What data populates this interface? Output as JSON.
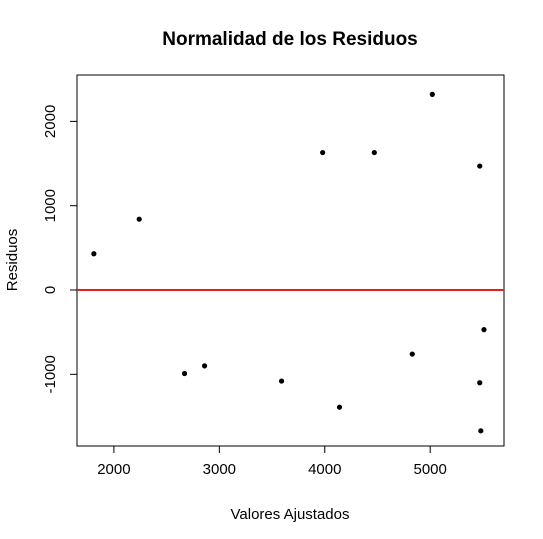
{
  "chart_data": {
    "type": "scatter",
    "title": "Normalidad de los Residuos",
    "xlabel": "Valores Ajustados",
    "ylabel": "Residuos",
    "xlim": [
      1650,
      5700
    ],
    "ylim": [
      -1850,
      2550
    ],
    "x_ticks": [
      2000,
      3000,
      4000,
      5000
    ],
    "x_tick_labels": [
      "2000",
      "3000",
      "4000",
      "5000"
    ],
    "y_ticks": [
      -1000,
      0,
      1000,
      2000
    ],
    "y_tick_labels": [
      "-1000",
      "0",
      "1000",
      "2000"
    ],
    "grid": false,
    "reference_line": {
      "y": 0,
      "color": "#e8201a"
    },
    "point_color": "#000000",
    "points": [
      {
        "x": 1810,
        "y": 430
      },
      {
        "x": 2240,
        "y": 840
      },
      {
        "x": 2670,
        "y": -990
      },
      {
        "x": 2860,
        "y": -900
      },
      {
        "x": 3590,
        "y": -1080
      },
      {
        "x": 3980,
        "y": 1630
      },
      {
        "x": 4140,
        "y": -1390
      },
      {
        "x": 4470,
        "y": 1630
      },
      {
        "x": 4830,
        "y": -760
      },
      {
        "x": 5020,
        "y": 2320
      },
      {
        "x": 5470,
        "y": 1470
      },
      {
        "x": 5470,
        "y": -1100
      },
      {
        "x": 5480,
        "y": -1670
      },
      {
        "x": 5510,
        "y": -470
      }
    ]
  }
}
